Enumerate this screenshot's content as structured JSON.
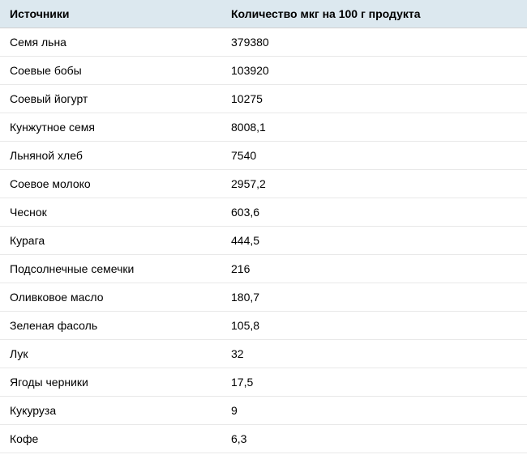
{
  "table": {
    "type": "table",
    "header_bg_color": "#dce8ef",
    "row_bg_color": "#ffffff",
    "border_color": "#e8e8e8",
    "header_border_color": "#d0d0d0",
    "text_color": "#000000",
    "font_size": 14,
    "header_font_weight": "bold",
    "cell_padding": "9px 12px",
    "columns": [
      {
        "key": "source",
        "label": "Источники",
        "width": "42%"
      },
      {
        "key": "amount",
        "label": "Количество мкг на 100 г продукта",
        "width": "58%"
      }
    ],
    "rows": [
      {
        "source": "Семя льна",
        "amount": "379380"
      },
      {
        "source": "Соевые бобы",
        "amount": "103920"
      },
      {
        "source": "Соевый йогурт",
        "amount": "10275"
      },
      {
        "source": "Кунжутное семя",
        "amount": "8008,1"
      },
      {
        "source": "Льняной хлеб",
        "amount": "7540"
      },
      {
        "source": "Соевое молоко",
        "amount": "2957,2"
      },
      {
        "source": "Чеснок",
        "amount": "603,6"
      },
      {
        "source": "Курага",
        "amount": "444,5"
      },
      {
        "source": "Подсолнечные семечки",
        "amount": "216"
      },
      {
        "source": "Оливковое масло",
        "amount": "180,7"
      },
      {
        "source": "Зеленая фасоль",
        "amount": "105,8"
      },
      {
        "source": "Лук",
        "amount": "32"
      },
      {
        "source": "Ягоды черники",
        "amount": "17,5"
      },
      {
        "source": "Кукуруза",
        "amount": "9"
      },
      {
        "source": "Кофе",
        "amount": "6,3"
      }
    ]
  }
}
